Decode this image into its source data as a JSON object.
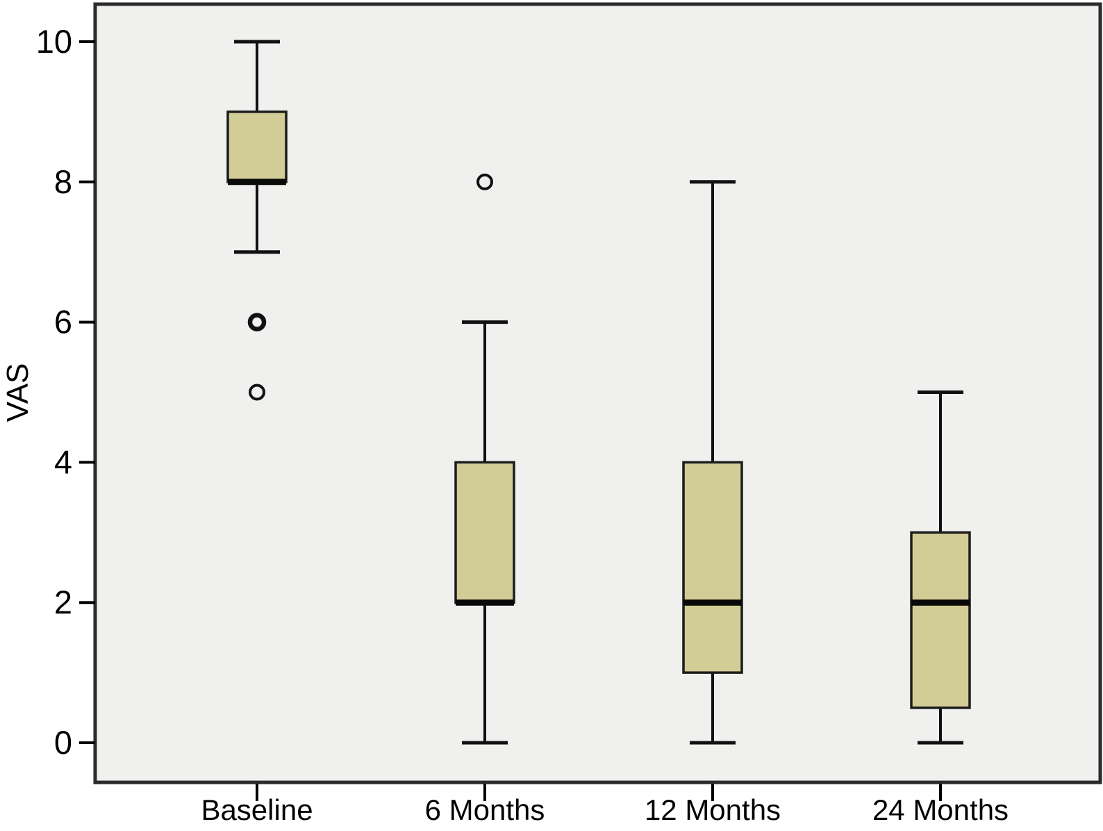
{
  "chart_data": {
    "type": "boxplot",
    "title": "",
    "xlabel": "",
    "ylabel": "VAS",
    "ylim": [
      0,
      10
    ],
    "yticks": [
      "0",
      "2",
      "4",
      "6",
      "8",
      "10"
    ],
    "ytick_values": [
      0,
      2,
      4,
      6,
      8,
      10
    ],
    "grid": false,
    "legend_position": "none",
    "categories": [
      "Baseline",
      "6 Months",
      "12 Months",
      "24 Months"
    ],
    "boxes": [
      {
        "category": "Baseline",
        "whisker_low": 7,
        "q1": 8,
        "median": 8,
        "q3": 9,
        "whisker_high": 10,
        "outliers": [
          {
            "value": 6,
            "emphasis": "bold"
          },
          {
            "value": 5,
            "emphasis": "normal"
          }
        ]
      },
      {
        "category": "6 Months",
        "whisker_low": 0,
        "q1": 2,
        "median": 2,
        "q3": 4,
        "whisker_high": 6,
        "outliers": [
          {
            "value": 8,
            "emphasis": "normal"
          }
        ]
      },
      {
        "category": "12 Months",
        "whisker_low": 0,
        "q1": 1,
        "median": 2,
        "q3": 4,
        "whisker_high": 8,
        "outliers": []
      },
      {
        "category": "24 Months",
        "whisker_low": 0,
        "q1": 0.5,
        "median": 2,
        "q3": 3,
        "whisker_high": 5,
        "outliers": []
      }
    ],
    "colors": {
      "box_fill": "#d2cc97",
      "box_border": "#1c1c1c",
      "median_line": "#0a0a0a",
      "whisker": "#111111",
      "outlier": "#111111",
      "plot_background": "#f0f0ef",
      "frame_border": "#2b2b2b",
      "outer_background": "#ffffff",
      "text": "#000000"
    }
  }
}
